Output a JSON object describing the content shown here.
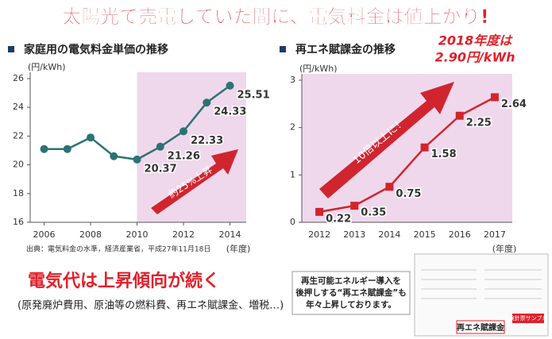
{
  "header": {
    "title": "太陽光で売電していた間に、電気料金は値上がり!"
  },
  "chart_data": [
    {
      "type": "line",
      "title": "家庭用の電気料金単価の推移",
      "y_label": "(円/kWh)",
      "x_label": "(年度)",
      "x": [
        2006,
        2007,
        2008,
        2009,
        2010,
        2011,
        2012,
        2013,
        2014
      ],
      "series": [
        {
          "color": "#2b7373",
          "values": [
            21.1,
            21.1,
            21.9,
            20.6,
            20.37,
            21.26,
            22.33,
            24.33,
            25.51
          ]
        }
      ],
      "xlim": [
        2005.4,
        2014.7
      ],
      "xticks": [
        2006,
        2008,
        2010,
        2012,
        2014
      ],
      "ylim": [
        16,
        26
      ],
      "yticks": [
        16,
        18,
        20,
        22,
        24,
        26
      ],
      "highlight_x": [
        2010,
        2014.7
      ],
      "highlight_color": "#f0d8ec",
      "annotation": "約25%上昇",
      "source": "出典：電気料金の水準，経済産業省，平成27年11月18日"
    },
    {
      "type": "line",
      "title": "再エネ賦課金の推移",
      "y_label": "(円/kWh)",
      "x_label": "(年度)",
      "categories": [
        "2012",
        "2013",
        "2014",
        "2015",
        "2016",
        "2017"
      ],
      "series": [
        {
          "color": "#d0252f",
          "values": [
            0.22,
            0.35,
            0.75,
            1.58,
            2.25,
            2.64
          ]
        }
      ],
      "ylim": [
        0,
        3
      ],
      "yticks": [
        0,
        1,
        2,
        3
      ],
      "plot_background": "#f0d8ec",
      "annotation": "10倍以上に！",
      "callout": [
        "2018年度は",
        "2.90円/kWh"
      ]
    }
  ],
  "footer": {
    "headline": "電気代は上昇傾向が続く",
    "note": "(原発廃炉費用、原油等の燃料費、再エネ賦課金、増税…)"
  },
  "notice": {
    "lines": [
      "再生可能エネルギー導入を",
      "後押しする“再エネ賦課金”も",
      "年々上昇しております。"
    ]
  },
  "sample": {
    "tag": "検針票サンプル",
    "label": "再エネ賦課金"
  }
}
